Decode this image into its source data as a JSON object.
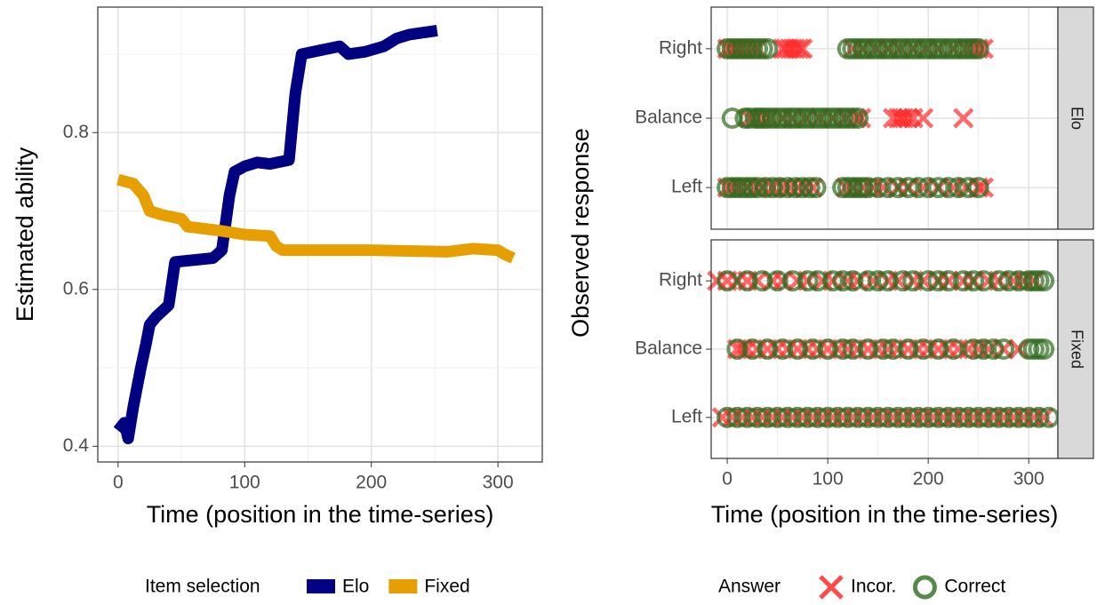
{
  "chart_data": [
    {
      "type": "line",
      "ylabel": "Estimated ability",
      "xlabel": "Time (position in the time-series)",
      "xlim": [
        -16,
        335
      ],
      "ylim": [
        0.38,
        0.96
      ],
      "xticks": [
        0,
        100,
        200,
        300
      ],
      "yticks": [
        0.4,
        0.6,
        0.8
      ],
      "minor_xticks": [
        50,
        150,
        250
      ],
      "minor_yticks": [
        0.5,
        0.7,
        0.9
      ],
      "grid": true,
      "legend_title": "Item selection",
      "legend": "bottom",
      "series": [
        {
          "name": "Elo",
          "color": "#000080",
          "x": [
            0,
            5,
            8,
            12,
            18,
            22,
            25,
            30,
            40,
            45,
            75,
            82,
            88,
            92,
            100,
            110,
            120,
            135,
            140,
            145,
            160,
            175,
            182,
            195,
            210,
            220,
            230,
            252
          ],
          "values": [
            0.42,
            0.43,
            0.41,
            0.45,
            0.5,
            0.53,
            0.555,
            0.565,
            0.58,
            0.635,
            0.64,
            0.65,
            0.72,
            0.75,
            0.757,
            0.762,
            0.76,
            0.765,
            0.85,
            0.9,
            0.905,
            0.91,
            0.9,
            0.903,
            0.91,
            0.92,
            0.925,
            0.93
          ]
        },
        {
          "name": "Fixed",
          "color": "#e69f00",
          "x": [
            0,
            12,
            20,
            25,
            35,
            50,
            55,
            80,
            100,
            120,
            125,
            130,
            200,
            260,
            280,
            300,
            305,
            312
          ],
          "values": [
            0.74,
            0.735,
            0.72,
            0.7,
            0.695,
            0.69,
            0.68,
            0.675,
            0.67,
            0.668,
            0.655,
            0.65,
            0.65,
            0.648,
            0.652,
            0.65,
            0.645,
            0.64
          ]
        }
      ]
    },
    {
      "type": "strip",
      "ylabel": "Observed response",
      "xlabel": "Time (position in the time-series)",
      "xlim": [
        -16,
        329
      ],
      "xticks": [
        0,
        100,
        200,
        300
      ],
      "minor_xticks": [
        50,
        150,
        250
      ],
      "grid": true,
      "legend_title": "Answer",
      "legend": "bottom",
      "series": [
        {
          "name": "Incor.",
          "color": "#ff2a2a",
          "marker": "x"
        },
        {
          "name": "Correct",
          "color": "#2e6b1e",
          "marker": "circle"
        }
      ],
      "facets": [
        {
          "label": "Elo",
          "categories": [
            "Right",
            "Balance",
            "Left"
          ],
          "values": [
            [
              [
                0,
                4,
                8,
                12,
                18,
                25,
                30,
                55,
                58,
                62,
                65,
                68,
                72,
                75,
                125,
                135,
                148,
                160,
                172,
                185,
                198,
                210,
                225,
                238,
                245,
                250,
                255
              ],
              [
                22,
                28,
                35,
                42,
                55,
                65,
                78,
                92,
                105,
                118,
                128,
                133,
                165,
                170,
                173,
                176,
                180,
                185,
                195,
                235
              ],
              [
                0,
                5,
                12,
                20,
                28,
                35,
                45,
                55,
                62,
                70,
                78,
                85,
                118,
                125,
                135,
                145,
                155,
                170,
                180,
                195,
                210,
                225,
                238,
                250,
                255
              ]
            ],
            [
              [
                0,
                5,
                10,
                15,
                20,
                25,
                30,
                35,
                40,
                120,
                125,
                130,
                135,
                140,
                145,
                150,
                155,
                160,
                165,
                170,
                175,
                180,
                185,
                190,
                195,
                200,
                205,
                210,
                215,
                220,
                225,
                230,
                235,
                240,
                245,
                250
              ],
              [
                5,
                18,
                22,
                28,
                32,
                36,
                40,
                45,
                50,
                55,
                60,
                65,
                70,
                75,
                80,
                85,
                90,
                95,
                100,
                105,
                110,
                115,
                120,
                125,
                130
              ],
              [
                0,
                5,
                10,
                15,
                20,
                25,
                30,
                38,
                45,
                52,
                60,
                68,
                75,
                82,
                88,
                115,
                120,
                125,
                130,
                135,
                140,
                150,
                160,
                170,
                180,
                190,
                200,
                210,
                220,
                230,
                240,
                250
              ]
            ]
          ]
        },
        {
          "label": "Fixed",
          "categories": [
            "Right",
            "Balance",
            "Left"
          ],
          "values": [
            [
              [
                -10,
                0,
                10,
                20,
                30,
                45,
                55,
                70,
                80,
                95,
                105,
                120,
                130,
                145,
                160,
                170,
                185,
                195,
                210,
                220,
                235,
                245,
                260,
                270,
                285,
                295,
                305
              ],
              [
                10,
                15,
                20,
                30,
                40,
                50,
                60,
                70,
                80,
                90,
                100,
                110,
                120,
                130,
                140,
                150,
                160,
                170,
                180,
                190,
                200,
                210,
                220,
                230,
                240,
                250,
                260,
                275,
                290
              ],
              [
                -5,
                5,
                15,
                25,
                35,
                45,
                55,
                65,
                75,
                85,
                95,
                105,
                115,
                125,
                135,
                145,
                155,
                165,
                175,
                185,
                195,
                205,
                215,
                225,
                235,
                245,
                255,
                265,
                275,
                285,
                295,
                305,
                315
              ]
            ],
            [
              [
                0,
                20,
                35,
                50,
                65,
                80,
                90,
                105,
                115,
                125,
                140,
                150,
                160,
                175,
                185,
                200,
                210,
                220,
                235,
                245,
                255,
                270,
                280,
                290,
                300,
                305,
                310,
                315
              ],
              [
                10,
                25,
                40,
                55,
                70,
                85,
                100,
                115,
                125,
                140,
                155,
                165,
                180,
                195,
                210,
                225,
                245,
                255,
                265,
                275,
                300,
                305,
                310,
                315
              ],
              [
                0,
                10,
                20,
                30,
                40,
                50,
                60,
                70,
                80,
                90,
                100,
                110,
                120,
                130,
                140,
                150,
                160,
                170,
                180,
                190,
                200,
                210,
                220,
                230,
                240,
                250,
                260,
                270,
                280,
                290,
                300,
                310,
                320
              ]
            ]
          ]
        }
      ]
    }
  ]
}
